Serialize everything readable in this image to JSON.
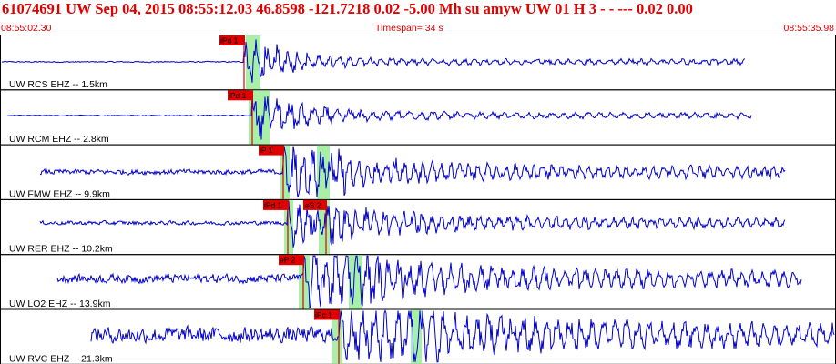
{
  "header": {
    "title": "61074691 UW Sep 04, 2015 08:55:12.03    46.8598 -121.7218  0.02 -5.00 Mh su    amyw     UW 01 H    3   -  - ---    0.02 0.00",
    "start_time": "08:55:02.30",
    "timespan": "Timespan=  34 s",
    "end_time": "08:55:35.98"
  },
  "colors": {
    "trace": "#0000cc",
    "pick": "#e00000",
    "window": "#a8f0a8",
    "text_red": "#e00000"
  },
  "panels": [
    {
      "label": "UW RCS EHZ -- 1.5km",
      "pick": "iPd 1",
      "s_pick": ""
    },
    {
      "label": "UW RCM EHZ -- 2.8km",
      "pick": "iPd 1",
      "s_pick": ""
    },
    {
      "label": "UW FMW EHZ -- 9.9km",
      "pick": "iP 1",
      "s_pick": ""
    },
    {
      "label": "UW RER EHZ -- 10.2km",
      "pick": "iPd 1",
      "s_pick": "eS 2"
    },
    {
      "label": "UW LO2 EHZ -- 13.9km",
      "pick": "eP 2",
      "s_pick": ""
    },
    {
      "label": "UW RVC EHZ -- 21.3km",
      "pick": "iPc 1",
      "s_pick": ""
    }
  ]
}
